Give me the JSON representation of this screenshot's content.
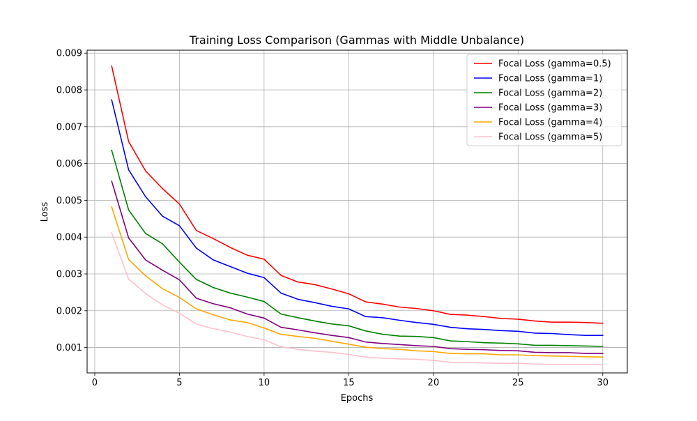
{
  "chart_data": {
    "type": "line",
    "title": "Training Loss Comparison (Gammas with Middle Unbalance)",
    "xlabel": "Epochs",
    "ylabel": "Loss",
    "xlim": [
      -0.45,
      31.45
    ],
    "ylim": [
      0.00031,
      0.00908
    ],
    "xticks": [
      0,
      5,
      10,
      15,
      20,
      25,
      30
    ],
    "yticks": [
      0.001,
      0.002,
      0.003,
      0.004,
      0.005,
      0.006,
      0.007,
      0.008,
      0.009
    ],
    "ytick_labels": [
      "0.001",
      "0.002",
      "0.003",
      "0.004",
      "0.005",
      "0.006",
      "0.007",
      "0.008",
      "0.009"
    ],
    "grid": true,
    "legend_position": "upper right",
    "x": [
      1,
      2,
      3,
      4,
      5,
      6,
      7,
      8,
      9,
      10,
      11,
      12,
      13,
      14,
      15,
      16,
      17,
      18,
      19,
      20,
      21,
      22,
      23,
      24,
      25,
      26,
      27,
      28,
      29,
      30
    ],
    "series": [
      {
        "name": "Focal Loss (gamma=0.5)",
        "color": "#ff0000",
        "values": [
          0.00865,
          0.0066,
          0.0058,
          0.00532,
          0.0049,
          0.00418,
          0.00396,
          0.00372,
          0.00351,
          0.0034,
          0.00296,
          0.00278,
          0.00271,
          0.00259,
          0.00246,
          0.00224,
          0.00218,
          0.0021,
          0.00206,
          0.002,
          0.0019,
          0.00188,
          0.00184,
          0.00179,
          0.00177,
          0.00172,
          0.00169,
          0.00169,
          0.00168,
          0.00166
        ]
      },
      {
        "name": "Focal Loss (gamma=1)",
        "color": "#0000ff",
        "values": [
          0.00773,
          0.00583,
          0.0051,
          0.00457,
          0.00431,
          0.0037,
          0.00338,
          0.0032,
          0.00302,
          0.0029,
          0.00248,
          0.00231,
          0.00222,
          0.00212,
          0.00205,
          0.00184,
          0.00181,
          0.00174,
          0.00168,
          0.00163,
          0.00155,
          0.00151,
          0.00149,
          0.00146,
          0.00144,
          0.00139,
          0.00138,
          0.00135,
          0.00133,
          0.00133
        ]
      },
      {
        "name": "Focal Loss (gamma=2)",
        "color": "#008000",
        "values": [
          0.00636,
          0.00474,
          0.0041,
          0.00382,
          0.00332,
          0.00285,
          0.00263,
          0.00248,
          0.00237,
          0.00225,
          0.00191,
          0.00181,
          0.00172,
          0.00164,
          0.00159,
          0.00145,
          0.00136,
          0.00131,
          0.0013,
          0.00127,
          0.00118,
          0.00116,
          0.00113,
          0.00112,
          0.0011,
          0.00106,
          0.00106,
          0.00105,
          0.00104,
          0.00103
        ]
      },
      {
        "name": "Focal Loss (gamma=3)",
        "color": "#800080",
        "values": [
          0.00552,
          0.00398,
          0.00338,
          0.0031,
          0.00284,
          0.00234,
          0.00219,
          0.00208,
          0.00191,
          0.0018,
          0.00155,
          0.00148,
          0.0014,
          0.00133,
          0.00127,
          0.00115,
          0.00111,
          0.00108,
          0.00105,
          0.00103,
          0.00097,
          0.00095,
          0.00094,
          0.00092,
          0.00091,
          0.00087,
          0.00086,
          0.00086,
          0.00084,
          0.00084
        ]
      },
      {
        "name": "Focal Loss (gamma=4)",
        "color": "#ffa500",
        "values": [
          0.00482,
          0.00339,
          0.00295,
          0.0026,
          0.00236,
          0.00205,
          0.00189,
          0.00175,
          0.00168,
          0.00153,
          0.00136,
          0.0013,
          0.00125,
          0.00117,
          0.00109,
          0.00101,
          0.00097,
          0.00095,
          0.00091,
          0.00089,
          0.00084,
          0.00083,
          0.00083,
          0.0008,
          0.0008,
          0.00078,
          0.00077,
          0.00076,
          0.00075,
          0.00074
        ]
      },
      {
        "name": "Focal Loss (gamma=5)",
        "color": "#ffc0cb",
        "values": [
          0.00412,
          0.00286,
          0.00247,
          0.00216,
          0.00193,
          0.00164,
          0.00151,
          0.00142,
          0.0013,
          0.00121,
          0.00102,
          0.00095,
          0.0009,
          0.00087,
          0.00081,
          0.00074,
          0.00071,
          0.00069,
          0.00068,
          0.00065,
          0.0006,
          0.00059,
          0.00058,
          0.00057,
          0.00057,
          0.00055,
          0.00054,
          0.00054,
          0.00054,
          0.00053
        ]
      }
    ]
  }
}
